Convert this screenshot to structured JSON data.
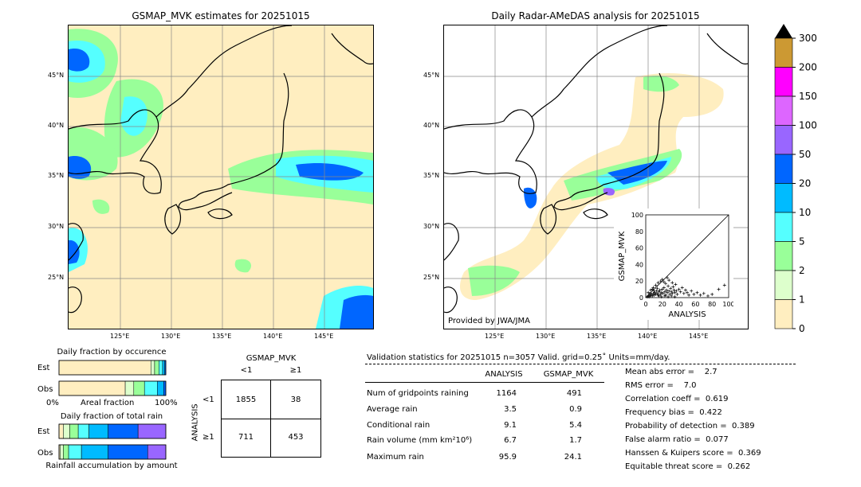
{
  "left_map": {
    "title": "GSMAP_MVK estimates for 20251015",
    "lon_labels": [
      "125°E",
      "130°E",
      "135°E",
      "140°E",
      "145°E"
    ],
    "lat_labels": [
      "45°N",
      "40°N",
      "35°N",
      "30°N",
      "25°N"
    ]
  },
  "right_map": {
    "title": "Daily Radar-AMeDAS analysis for 20251015",
    "provided_by": "Provided by JWA/JMA",
    "lon_labels": [
      "125°E",
      "130°E",
      "135°E",
      "140°E",
      "145°E"
    ],
    "lat_labels": [
      "45°N",
      "40°N",
      "35°N",
      "30°N",
      "25°N"
    ]
  },
  "colorbar": {
    "levels": [
      "300",
      "200",
      "150",
      "100",
      "50",
      "20",
      "10",
      "5",
      "2",
      "1",
      "0"
    ],
    "colors": [
      "#cc9933",
      "#ff00ff",
      "#dd66ff",
      "#9966ff",
      "#0066ff",
      "#00bbff",
      "#55ffff",
      "#99ff99",
      "#ddffcc",
      "#ffeec0"
    ]
  },
  "occurrence": {
    "title": "Daily fraction by occurence",
    "est_label": "Est",
    "obs_label": "Obs",
    "axis_left": "0%",
    "axis_mid": "Areal fraction",
    "axis_right": "100%"
  },
  "total_rain": {
    "title": "Daily fraction of total rain",
    "est_label": "Est",
    "obs_label": "Obs",
    "axis_label": "Rainfall accumulation by amount"
  },
  "contingency": {
    "title": "GSMAP_MVK",
    "col_lt": "<1",
    "col_ge": "≥1",
    "row_axis": "ANALYSIS",
    "row_lt": "<1",
    "row_ge": "≥1",
    "c11": "1855",
    "c12": "38",
    "c21": "711",
    "c22": "453"
  },
  "validation": {
    "header": "Validation statistics for 20251015  n=3057 Valid. grid=0.25˚ Units=mm/day.",
    "col_analysis": "ANALYSIS",
    "col_gsmap": "GSMAP_MVK",
    "rows": [
      {
        "label": "Num of gridpoints raining",
        "analysis": "1164",
        "gsmap": "491"
      },
      {
        "label": "Average rain",
        "analysis": "3.5",
        "gsmap": "0.9"
      },
      {
        "label": "Conditional rain",
        "analysis": "9.1",
        "gsmap": "5.4"
      },
      {
        "label": "Rain volume (mm km²10⁶)",
        "analysis": "6.7",
        "gsmap": "1.7"
      },
      {
        "label": "Maximum rain",
        "analysis": "95.9",
        "gsmap": "24.1"
      }
    ],
    "scores": [
      "Mean abs error =    2.7",
      "RMS error =    7.0",
      "Correlation coeff =  0.619",
      "Frequency bias =  0.422",
      "Probability of detection =  0.389",
      "False alarm ratio =  0.077",
      "Hanssen & Kuipers score =  0.369",
      "Equitable threat score =  0.262"
    ]
  },
  "chart_data": [
    {
      "type": "scatter",
      "title": "",
      "xlabel": "ANALYSIS",
      "ylabel": "GSMAP_MVK",
      "xlim": [
        0,
        100
      ],
      "ylim": [
        0,
        100
      ],
      "ticks": [
        "0",
        "20",
        "40",
        "60",
        "80",
        "100"
      ],
      "points": [
        [
          2,
          1
        ],
        [
          3,
          2
        ],
        [
          4,
          1
        ],
        [
          5,
          3
        ],
        [
          6,
          2
        ],
        [
          7,
          4
        ],
        [
          8,
          2
        ],
        [
          9,
          5
        ],
        [
          10,
          3
        ],
        [
          11,
          6
        ],
        [
          12,
          4
        ],
        [
          13,
          8
        ],
        [
          14,
          5
        ],
        [
          15,
          3
        ],
        [
          16,
          7
        ],
        [
          17,
          9
        ],
        [
          18,
          4
        ],
        [
          19,
          6
        ],
        [
          20,
          10
        ],
        [
          21,
          5
        ],
        [
          22,
          12
        ],
        [
          23,
          7
        ],
        [
          24,
          3
        ],
        [
          25,
          9
        ],
        [
          26,
          6
        ],
        [
          27,
          14
        ],
        [
          28,
          8
        ],
        [
          29,
          4
        ],
        [
          30,
          11
        ],
        [
          31,
          7
        ],
        [
          32,
          5
        ],
        [
          33,
          13
        ],
        [
          34,
          9
        ],
        [
          35,
          6
        ],
        [
          36,
          16
        ],
        [
          37,
          8
        ],
        [
          38,
          4
        ],
        [
          40,
          10
        ],
        [
          42,
          7
        ],
        [
          44,
          12
        ],
        [
          46,
          5
        ],
        [
          48,
          9
        ],
        [
          50,
          6
        ],
        [
          52,
          3
        ],
        [
          55,
          8
        ],
        [
          58,
          4
        ],
        [
          62,
          6
        ],
        [
          66,
          3
        ],
        [
          70,
          5
        ],
        [
          75,
          2
        ],
        [
          80,
          4
        ],
        [
          88,
          10
        ],
        [
          95,
          15
        ],
        [
          3,
          6
        ],
        [
          6,
          9
        ],
        [
          9,
          12
        ],
        [
          12,
          15
        ],
        [
          15,
          18
        ],
        [
          18,
          20
        ],
        [
          20,
          22
        ],
        [
          8,
          10
        ],
        [
          14,
          11
        ],
        [
          24,
          17
        ],
        [
          28,
          21
        ],
        [
          32,
          18
        ],
        [
          26,
          24
        ],
        [
          22,
          19
        ],
        [
          5,
          5
        ],
        [
          10,
          8
        ],
        [
          16,
          2
        ],
        [
          19,
          1
        ],
        [
          23,
          2
        ],
        [
          27,
          1
        ],
        [
          31,
          2
        ],
        [
          35,
          1
        ]
      ]
    },
    {
      "type": "bar",
      "title": "Daily fraction by occurence",
      "series": [
        {
          "name": "Est",
          "values": [
            0.86,
            0.035,
            0.04,
            0.035,
            0.02,
            0.01
          ]
        },
        {
          "name": "Obs",
          "values": [
            0.62,
            0.08,
            0.1,
            0.12,
            0.06,
            0.02
          ]
        }
      ],
      "categories": [
        "0",
        "1",
        "2",
        "5",
        "10",
        "20"
      ]
    },
    {
      "type": "bar",
      "title": "Daily fraction of total rain",
      "series": [
        {
          "name": "Est",
          "values": [
            0.04,
            0.06,
            0.08,
            0.1,
            0.18,
            0.28,
            0.26
          ]
        },
        {
          "name": "Obs",
          "values": [
            0.01,
            0.03,
            0.05,
            0.12,
            0.25,
            0.37,
            0.17
          ]
        }
      ],
      "categories": [
        "0",
        "1",
        "2",
        "5",
        "10",
        "20",
        "50"
      ]
    }
  ]
}
